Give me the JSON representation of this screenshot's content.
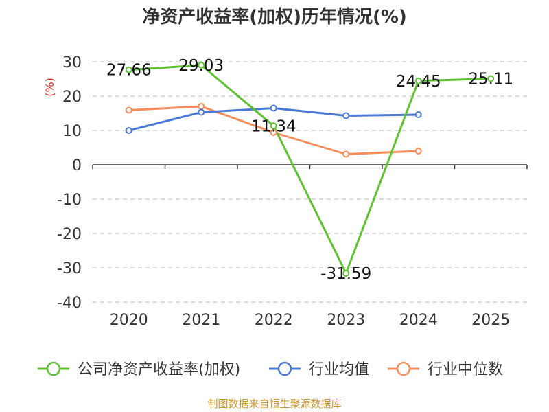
{
  "title": "净资产收益率(加权)历年情况(%)",
  "source": "制图数据来自恒生聚源数据库",
  "chart_data": {
    "type": "line",
    "title": "净资产收益率(加权)历年情况(%)",
    "xlabel": "",
    "ylabel": "(%)",
    "categories": [
      "2020",
      "2021",
      "2022",
      "2023",
      "2024",
      "2025"
    ],
    "ylim": [
      -40,
      30
    ],
    "yticks": [
      30,
      20,
      10,
      0,
      -10,
      -20,
      -30,
      -40
    ],
    "grid": true,
    "legend_position": "bottom",
    "series": [
      {
        "name": "公司净资产收益率(加权)",
        "color": "#5ec232",
        "values": [
          27.66,
          29.03,
          11.34,
          -31.59,
          24.45,
          25.11
        ],
        "labels": [
          "27.66",
          "29.03",
          "11.34",
          "-31.59",
          "24.45",
          "25.11"
        ]
      },
      {
        "name": "行业均值",
        "color": "#4a7ad6",
        "values": [
          10,
          15.3,
          16.5,
          14.3,
          14.6,
          null
        ]
      },
      {
        "name": "行业中位数",
        "color": "#f58d5c",
        "values": [
          15.9,
          17.0,
          9.4,
          3.1,
          4.0,
          null
        ]
      }
    ]
  }
}
